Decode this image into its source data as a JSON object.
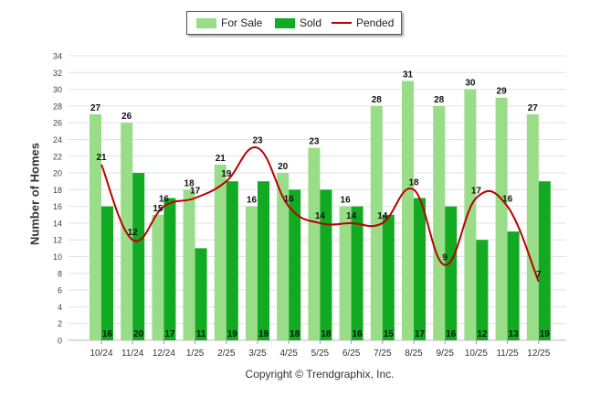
{
  "chart_data": {
    "type": "bar",
    "title": "",
    "xlabel": "",
    "ylabel": "Number of Homes",
    "ylim": [
      0,
      34
    ],
    "yticks": [
      0,
      2,
      4,
      6,
      8,
      10,
      12,
      14,
      16,
      18,
      20,
      22,
      24,
      26,
      28,
      30,
      32,
      34
    ],
    "categories": [
      "10/24",
      "11/24",
      "12/24",
      "1/25",
      "2/25",
      "3/25",
      "4/25",
      "5/25",
      "6/25",
      "7/25",
      "8/25",
      "9/25",
      "10/25",
      "11/25",
      "12/25"
    ],
    "series": [
      {
        "name": "For Sale",
        "kind": "bar",
        "color": "#99dd88",
        "values": [
          27,
          26,
          15,
          18,
          21,
          16,
          20,
          23,
          16,
          28,
          31,
          28,
          30,
          29,
          27
        ]
      },
      {
        "name": "Sold",
        "kind": "bar",
        "color": "#11aa22",
        "values": [
          16,
          20,
          17,
          11,
          19,
          19,
          18,
          18,
          16,
          15,
          17,
          16,
          12,
          13,
          19
        ]
      },
      {
        "name": "Pended",
        "kind": "line",
        "color": "#bb0000",
        "values": [
          21,
          12,
          16,
          17,
          19,
          23,
          16,
          14,
          14,
          14,
          18,
          9,
          17,
          16,
          7
        ]
      }
    ],
    "legend_position": "top-center",
    "grid": true
  },
  "footer": {
    "copyright": "Copyright © Trendgraphix, Inc."
  }
}
